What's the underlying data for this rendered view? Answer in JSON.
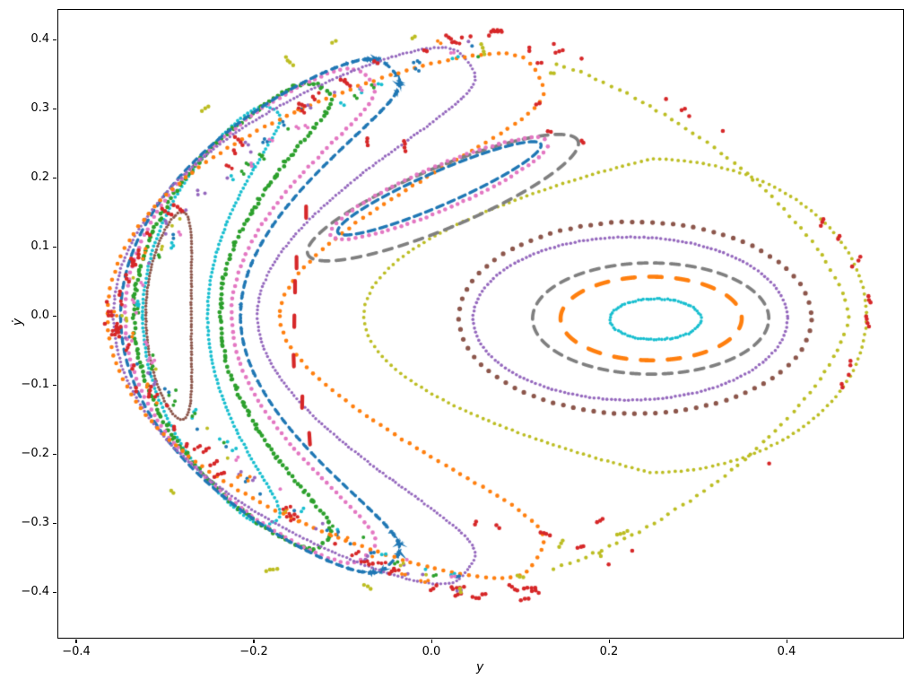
{
  "axes": {
    "xlabel": "y",
    "ylabel": "ẏ",
    "xlim": [
      -0.4212,
      0.5323
    ],
    "ylim": [
      -0.4675,
      0.4442
    ],
    "xticks": [
      -0.4,
      -0.2,
      0.0,
      0.2,
      0.4
    ],
    "xtick_labels": [
      "−0.4",
      "−0.2",
      "0.0",
      "0.2",
      "0.4"
    ],
    "yticks": [
      0.4,
      0.3,
      0.2,
      0.1,
      0.0,
      -0.1,
      -0.2,
      -0.3,
      -0.4
    ],
    "ytick_labels": [
      "0.4",
      "0.3",
      "0.2",
      "0.1",
      "0.0",
      "−0.1",
      "−0.2",
      "−0.3",
      "−0.4"
    ],
    "spine_color": "#000000",
    "background": "#ffffff",
    "grid": false
  },
  "palette": {
    "blue": "#1f77b4",
    "orange": "#ff7f0e",
    "green": "#2ca02c",
    "red": "#d62728",
    "purple": "#9467bd",
    "brown": "#8c564b",
    "pink": "#e377c2",
    "gray": "#7f7f7f",
    "olive": "#bcbd22",
    "cyan": "#17becf"
  },
  "chart_data": {
    "type": "scatter",
    "title": "",
    "xlabel": "y",
    "ylabel": "ẏ",
    "xlim": [
      -0.4212,
      0.5323
    ],
    "ylim": [
      -0.4675,
      0.4442
    ],
    "grid": false,
    "legend": null,
    "description": "Poincare surface-of-section: nested quasi-periodic orbit curves (dotted/dashed closed loops) plus chaotic scattered points near the boundary.",
    "series": [
      {
        "name": "left-lens-brown",
        "color": "brown",
        "type": "banana",
        "m0": -0.296,
        "tx": -0.28,
        "ty": 0.15,
        "h0": 0.0255,
        "wq": 1.0,
        "marker": {
          "kind": "dot",
          "r": 1.7,
          "spacing": 3.4
        },
        "jitter": 0.4,
        "seed": 10
      },
      {
        "name": "left-crescent-cyan",
        "color": "cyan",
        "type": "banana",
        "m0": -0.2885,
        "tx": -0.178,
        "ty": 0.299,
        "h0": 0.0365,
        "wq": 0.55,
        "marker": {
          "kind": "dot",
          "r": 1.9,
          "spacing": 4.6
        },
        "jitter": 0.5,
        "seed": 11
      },
      {
        "name": "left-crescent-green",
        "color": "green",
        "type": "banana",
        "m0": -0.2865,
        "tx": -0.121,
        "ty": 0.329,
        "h0": 0.0485,
        "wq": 0.55,
        "marker": {
          "kind": "dot",
          "r": 2.4,
          "spacing": 5.5
        },
        "jitter": 1.4,
        "seed": 12
      },
      {
        "name": "left-crescent-pink",
        "color": "pink",
        "type": "banana",
        "m0": -0.285,
        "tx": -0.072,
        "ty": 0.345,
        "h0": 0.06,
        "wq": 0.55,
        "marker": {
          "kind": "dot",
          "r": 2.3,
          "spacing": 7.5
        },
        "jitter": 0.6,
        "seed": 13
      },
      {
        "name": "left-crescent-blue",
        "color": "blue",
        "type": "banana",
        "m0": -0.2825,
        "tx": -0.045,
        "ty": 0.357,
        "h0": 0.0675,
        "wq": 0.55,
        "marker": {
          "kind": "dash",
          "dash": 7,
          "gap": 5.5,
          "lw": 3.3
        },
        "jitter": 0.5,
        "seed": 14
      },
      {
        "name": "left-crescent-purple",
        "color": "purple",
        "type": "banana",
        "m0": -0.277,
        "tx": 0.041,
        "ty": 0.367,
        "h0": 0.081,
        "wq": 0.55,
        "marker": {
          "kind": "dot",
          "r": 1.7,
          "spacing": 4.4
        },
        "jitter": 0.5,
        "seed": 15
      },
      {
        "name": "left-crescent-orange",
        "color": "orange",
        "type": "banana",
        "m0": -0.268,
        "tx": 0.119,
        "ty": 0.35,
        "h0": 0.097,
        "wq": 0.55,
        "marker": {
          "kind": "dot",
          "r": 2.3,
          "spacing": 9.5
        },
        "jitter": 0.6,
        "seed": 16
      },
      {
        "name": "right-oval-cyan",
        "color": "cyan",
        "type": "ellipse",
        "cx": 0.2525,
        "cy": -0.005,
        "rx": 0.0515,
        "ry": 0.0295,
        "rot": 0,
        "marker": {
          "kind": "dot",
          "r": 1.8,
          "spacing": 3.0
        },
        "jitter": 0.7,
        "seed": 17
      },
      {
        "name": "right-oval-orange-dashed",
        "color": "orange",
        "type": "ellipse",
        "cx": 0.2475,
        "cy": -0.004,
        "rx": 0.102,
        "ry": 0.0605,
        "rot": 0,
        "marker": {
          "kind": "dash",
          "dash": 14,
          "gap": 16,
          "lw": 4.6
        },
        "jitter": 0,
        "seed": 18
      },
      {
        "name": "right-oval-gray-dashed",
        "color": "gray",
        "type": "ellipse",
        "cx": 0.247,
        "cy": -0.004,
        "rx": 0.133,
        "ry": 0.0805,
        "rot": 0,
        "marker": {
          "kind": "dash",
          "dash": 10,
          "gap": 8,
          "lw": 3.7
        },
        "jitter": 0,
        "seed": 19
      },
      {
        "name": "right-oval-purple",
        "color": "purple",
        "type": "ellipse",
        "cx": 0.224,
        "cy": -0.004,
        "rx": 0.177,
        "ry": 0.118,
        "rot": 0,
        "marker": {
          "kind": "dot",
          "r": 1.8,
          "spacing": 4.8
        },
        "jitter": 0.4,
        "seed": 20
      },
      {
        "name": "right-oval-brown",
        "color": "brown",
        "type": "ellipse",
        "cx": 0.2295,
        "cy": -0.003,
        "rx": 0.1985,
        "ry": 0.139,
        "rot": 0,
        "marker": {
          "kind": "dot",
          "r": 2.6,
          "spacing": 11.5
        },
        "jitter": 0.4,
        "seed": 21
      },
      {
        "name": "olive-egg-curve",
        "color": "olive",
        "type": "egg",
        "cx": 0.248,
        "cy": 0.0,
        "ry": 0.227,
        "rxl": 0.324,
        "rxr": 0.242,
        "expl": 1.9,
        "expr": 1.0,
        "marker": {
          "kind": "dot",
          "r": 1.9,
          "spacing": 7.0
        },
        "jitter": 0.4,
        "seed": 22
      },
      {
        "name": "upper-island-gray-dashed",
        "color": "gray",
        "type": "ellipse",
        "cx": 0.013,
        "cy": 0.171,
        "rx": 0.173,
        "ry": 0.042,
        "rot": 29,
        "marker": {
          "kind": "dash",
          "dash": 10,
          "gap": 8,
          "lw": 3.7
        },
        "jitter": 0,
        "seed": 23
      },
      {
        "name": "upper-island-pink",
        "color": "pink",
        "type": "ellipse",
        "cx": 0.009,
        "cy": 0.1845,
        "rx": 0.14,
        "ry": 0.03,
        "rot": 29.5,
        "marker": {
          "kind": "dot",
          "r": 2.3,
          "spacing": 7.5
        },
        "jitter": 0.5,
        "seed": 24
      },
      {
        "name": "upper-island-blue-dashed",
        "color": "blue",
        "type": "ellipse",
        "cx": 0.009,
        "cy": 0.1845,
        "rx": 0.131,
        "ry": 0.023,
        "rot": 29.5,
        "marker": {
          "kind": "dash",
          "dash": 8,
          "gap": 5.5,
          "lw": 3.4
        },
        "jitter": 0,
        "seed": 25
      },
      {
        "name": "olive-outer-arc",
        "color": "olive",
        "type": "sarc",
        "cx": 0.068,
        "cy": 0.0,
        "rx": 0.402,
        "ry": 0.386,
        "exp": 1.35,
        "a0": -75,
        "a1": 75,
        "marker": {
          "kind": "dot",
          "r": 2.1,
          "spacing": 9.5
        },
        "jitter": 1.0,
        "seed": 26
      },
      {
        "name": "red-chaotic-ring",
        "color": "red",
        "type": "band",
        "cx": 0.068,
        "cy": 0.0,
        "rx": 0.432,
        "ry": 0.408,
        "exp": 1.35,
        "a0": 0,
        "a1": 360,
        "n": 70,
        "rjit": 0.012,
        "cmax": 4,
        "dotr": 2.3,
        "seed": 5
      },
      {
        "name": "fringe-cyan",
        "color": "cyan",
        "type": "band",
        "cx": 0.068,
        "cy": 0.0,
        "rx": 0.398,
        "ry": 0.383,
        "exp": 1.35,
        "a0": 95,
        "a1": 265,
        "n": 22,
        "rjit": 0.013,
        "cmax": 2,
        "dotr": 2.0,
        "seed": 31
      },
      {
        "name": "fringe-green",
        "color": "green",
        "type": "band",
        "cx": 0.068,
        "cy": 0.0,
        "rx": 0.404,
        "ry": 0.389,
        "exp": 1.35,
        "a0": 95,
        "a1": 265,
        "n": 22,
        "rjit": 0.013,
        "cmax": 2,
        "dotr": 2.0,
        "seed": 32
      },
      {
        "name": "fringe-blue",
        "color": "blue",
        "type": "band",
        "cx": 0.068,
        "cy": 0.0,
        "rx": 0.41,
        "ry": 0.395,
        "exp": 1.35,
        "a0": 95,
        "a1": 265,
        "n": 24,
        "rjit": 0.013,
        "cmax": 2,
        "dotr": 2.0,
        "seed": 33
      },
      {
        "name": "fringe-purple",
        "color": "purple",
        "type": "band",
        "cx": 0.068,
        "cy": 0.0,
        "rx": 0.416,
        "ry": 0.401,
        "exp": 1.35,
        "a0": 95,
        "a1": 265,
        "n": 26,
        "rjit": 0.013,
        "cmax": 2,
        "dotr": 2.0,
        "seed": 34
      },
      {
        "name": "fringe-pink",
        "color": "pink",
        "type": "band",
        "cx": 0.068,
        "cy": 0.0,
        "rx": 0.403,
        "ry": 0.388,
        "exp": 1.35,
        "a0": 100,
        "a1": 260,
        "n": 18,
        "rjit": 0.013,
        "cmax": 2,
        "dotr": 2.0,
        "seed": 35
      },
      {
        "name": "fringe-orange",
        "color": "orange",
        "type": "band",
        "cx": 0.068,
        "cy": 0.0,
        "rx": 0.42,
        "ry": 0.405,
        "exp": 1.35,
        "a0": 100,
        "a1": 260,
        "n": 18,
        "rjit": 0.013,
        "cmax": 2,
        "dotr": 2.0,
        "seed": 36
      },
      {
        "name": "fringe-olive",
        "color": "olive",
        "type": "band",
        "cx": 0.068,
        "cy": 0.0,
        "rx": 0.412,
        "ry": 0.397,
        "exp": 1.35,
        "a0": 105,
        "a1": 255,
        "n": 12,
        "rjit": 0.013,
        "cmax": 2,
        "dotr": 2.0,
        "seed": 37
      },
      {
        "name": "fringe-red",
        "color": "red",
        "type": "band",
        "cx": 0.068,
        "cy": 0.0,
        "rx": 0.424,
        "ry": 0.409,
        "exp": 1.35,
        "a0": 100,
        "a1": 260,
        "n": 20,
        "rjit": 0.013,
        "cmax": 3,
        "dotr": 2.1,
        "seed": 38
      },
      {
        "name": "red-separatrix-dashes",
        "color": "red",
        "type": "vdashes",
        "x": -0.156,
        "curve": 0.6,
        "ys": [
          0.15,
          0.077,
          0.042,
          -0.008,
          -0.065,
          -0.125,
          -0.178
        ],
        "len": 13,
        "lw": 4.2,
        "seed": 41
      },
      {
        "name": "red-chaotic-clumps",
        "color": "red",
        "type": "clumps",
        "dotr": 2.3,
        "seed": 42,
        "pts": [
          [
            -0.072,
            0.252
          ],
          [
            -0.03,
            0.246
          ],
          [
            0.11,
            0.385
          ],
          [
            0.122,
            0.366
          ],
          [
            0.12,
            0.307
          ],
          [
            0.133,
            0.267
          ],
          [
            0.17,
            0.252
          ],
          [
            0.075,
            -0.305
          ],
          [
            0.128,
            -0.316
          ],
          [
            0.168,
            -0.335
          ],
          [
            0.19,
            -0.296
          ],
          [
            0.05,
            -0.3
          ]
        ]
      },
      {
        "name": "olive-chaotic-clumps",
        "color": "olive",
        "type": "clumps",
        "dotr": 2.2,
        "seed": 43,
        "pts": [
          [
            -0.16,
            0.368
          ],
          [
            -0.11,
            0.396
          ],
          [
            -0.02,
            0.403
          ],
          [
            0.058,
            0.386
          ],
          [
            0.136,
            0.352
          ],
          [
            -0.255,
            0.3
          ],
          [
            -0.292,
            -0.255
          ],
          [
            0.1,
            -0.377
          ],
          [
            0.032,
            -0.397
          ],
          [
            -0.072,
            -0.392
          ],
          [
            -0.18,
            -0.368
          ],
          [
            0.146,
            -0.33
          ],
          [
            0.19,
            -0.346
          ],
          [
            0.215,
            -0.315
          ]
        ]
      }
    ]
  }
}
